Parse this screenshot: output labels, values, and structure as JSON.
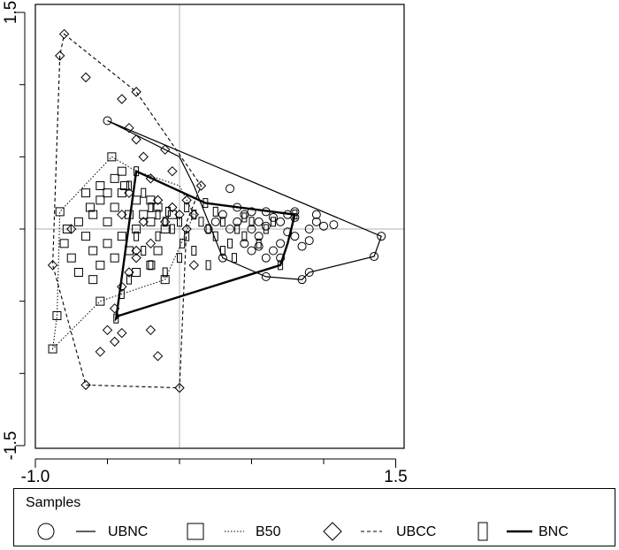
{
  "chart_data": {
    "type": "scatter",
    "title": "",
    "xlabel": "",
    "ylabel": "",
    "xlim": [
      -1.0,
      1.5
    ],
    "ylim": [
      -1.5,
      1.5
    ],
    "grid": false,
    "reference_lines": {
      "x": 0.0,
      "y": 0.0
    },
    "x_tick_labels": [
      "-1.0",
      "1.5"
    ],
    "y_tick_labels": [
      "1.5",
      "-1.5"
    ],
    "legend": {
      "title": "Samples",
      "placement": "bottom"
    },
    "series": [
      {
        "name": "UBNC",
        "marker": "circle",
        "line": "solid",
        "hull": [
          [
            -0.5,
            0.75
          ],
          [
            1.4,
            -0.05
          ],
          [
            1.35,
            -0.19
          ],
          [
            0.9,
            -0.3
          ],
          [
            0.85,
            -0.35
          ],
          [
            0.6,
            -0.33
          ],
          [
            0.3,
            -0.2
          ],
          [
            0.1,
            0.3
          ],
          [
            0.0,
            0.5
          ]
        ],
        "points": [
          [
            -0.5,
            0.75
          ],
          [
            1.4,
            -0.05
          ],
          [
            1.35,
            -0.19
          ],
          [
            0.9,
            -0.3
          ],
          [
            0.85,
            -0.35
          ],
          [
            0.6,
            -0.33
          ],
          [
            0.3,
            -0.2
          ],
          [
            0.35,
            0.28
          ],
          [
            1.07,
            0.03
          ],
          [
            0.75,
            0.1
          ],
          [
            0.6,
            0.12
          ],
          [
            0.55,
            0.05
          ],
          [
            0.5,
            0.0
          ],
          [
            0.7,
            -0.1
          ],
          [
            0.8,
            -0.05
          ],
          [
            0.9,
            0.0
          ],
          [
            0.65,
            -0.15
          ],
          [
            0.4,
            0.05
          ],
          [
            0.45,
            0.1
          ],
          [
            0.55,
            -0.05
          ],
          [
            0.6,
            0.02
          ],
          [
            0.7,
            0.05
          ],
          [
            0.5,
            0.12
          ],
          [
            0.8,
            0.08
          ],
          [
            0.95,
            0.05
          ],
          [
            1.0,
            0.02
          ],
          [
            0.85,
            -0.12
          ],
          [
            0.6,
            -0.2
          ],
          [
            0.45,
            -0.1
          ],
          [
            0.35,
            0.0
          ],
          [
            0.3,
            0.1
          ],
          [
            0.25,
            0.05
          ],
          [
            0.2,
            0.0
          ],
          [
            0.75,
            -0.02
          ],
          [
            0.65,
            0.08
          ],
          [
            0.55,
            -0.12
          ],
          [
            0.9,
            -0.08
          ],
          [
            0.4,
            0.15
          ],
          [
            0.7,
            -0.2
          ],
          [
            0.5,
            -0.15
          ],
          [
            0.8,
            0.12
          ],
          [
            0.95,
            0.1
          ]
        ]
      },
      {
        "name": "B50",
        "marker": "square",
        "line": "dotted",
        "hull": [
          [
            -0.47,
            0.5
          ],
          [
            -0.3,
            0.4
          ],
          [
            0.0,
            0.3
          ],
          [
            0.1,
            0.1
          ],
          [
            -0.1,
            -0.35
          ],
          [
            -0.55,
            -0.5
          ],
          [
            -0.88,
            -0.83
          ],
          [
            -0.85,
            -0.6
          ],
          [
            -0.83,
            0.12
          ]
        ],
        "points": [
          [
            -0.47,
            0.5
          ],
          [
            -0.83,
            0.12
          ],
          [
            -0.85,
            -0.6
          ],
          [
            -0.88,
            -0.83
          ],
          [
            -0.55,
            -0.5
          ],
          [
            -0.1,
            -0.35
          ],
          [
            -0.6,
            0.1
          ],
          [
            -0.55,
            0.2
          ],
          [
            -0.5,
            0.05
          ],
          [
            -0.45,
            0.15
          ],
          [
            -0.4,
            0.25
          ],
          [
            -0.35,
            0.1
          ],
          [
            -0.3,
            0.2
          ],
          [
            -0.25,
            0.1
          ],
          [
            -0.2,
            0.05
          ],
          [
            -0.15,
            0.15
          ],
          [
            -0.1,
            0.0
          ],
          [
            -0.05,
            0.1
          ],
          [
            -0.65,
            -0.05
          ],
          [
            -0.6,
            -0.15
          ],
          [
            -0.55,
            -0.25
          ],
          [
            -0.5,
            -0.1
          ],
          [
            -0.45,
            -0.2
          ],
          [
            -0.4,
            -0.05
          ],
          [
            -0.35,
            -0.15
          ],
          [
            -0.7,
            0.05
          ],
          [
            -0.75,
            -0.2
          ],
          [
            -0.65,
            0.25
          ],
          [
            -0.55,
            0.3
          ],
          [
            -0.45,
            0.35
          ],
          [
            -0.38,
            0.3
          ],
          [
            -0.3,
            -0.3
          ],
          [
            -0.2,
            -0.25
          ],
          [
            -0.6,
            -0.35
          ],
          [
            -0.7,
            -0.3
          ],
          [
            -0.78,
            0.0
          ],
          [
            -0.5,
            0.25
          ],
          [
            -0.4,
            0.4
          ],
          [
            -0.3,
            0.0
          ],
          [
            -0.2,
            0.2
          ],
          [
            -0.15,
            -0.15
          ],
          [
            -0.8,
            -0.1
          ],
          [
            -0.62,
            0.15
          ]
        ]
      },
      {
        "name": "UBCC",
        "marker": "diamond",
        "line": "dashed",
        "hull": [
          [
            -0.8,
            1.35
          ],
          [
            -0.3,
            0.95
          ],
          [
            0.15,
            0.3
          ],
          [
            0.05,
            0.05
          ],
          [
            0.0,
            -1.1
          ],
          [
            -0.65,
            -1.08
          ],
          [
            -0.88,
            -0.25
          ],
          [
            -0.83,
            1.2
          ]
        ],
        "points": [
          [
            -0.8,
            1.35
          ],
          [
            -0.83,
            1.2
          ],
          [
            -0.3,
            0.95
          ],
          [
            0.15,
            0.3
          ],
          [
            0.0,
            -1.1
          ],
          [
            -0.65,
            -1.08
          ],
          [
            -0.88,
            -0.25
          ],
          [
            -0.65,
            1.05
          ],
          [
            -0.4,
            0.9
          ],
          [
            -0.35,
            0.7
          ],
          [
            -0.3,
            0.62
          ],
          [
            -0.1,
            0.55
          ],
          [
            -0.05,
            0.4
          ],
          [
            -0.25,
            0.5
          ],
          [
            -0.2,
            0.35
          ],
          [
            -0.15,
            0.2
          ],
          [
            -0.05,
            0.15
          ],
          [
            0.0,
            0.1
          ],
          [
            0.05,
            0.2
          ],
          [
            0.1,
            0.1
          ],
          [
            -0.25,
            0.05
          ],
          [
            -0.2,
            -0.1
          ],
          [
            -0.3,
            -0.2
          ],
          [
            -0.35,
            -0.3
          ],
          [
            -0.4,
            -0.4
          ],
          [
            -0.45,
            -0.55
          ],
          [
            -0.5,
            -0.7
          ],
          [
            -0.55,
            -0.85
          ],
          [
            -0.45,
            -0.78
          ],
          [
            -0.4,
            -0.72
          ],
          [
            -0.2,
            -0.7
          ],
          [
            -0.15,
            -0.88
          ],
          [
            -0.75,
            0.0
          ],
          [
            -0.4,
            0.1
          ],
          [
            -0.35,
            0.25
          ],
          [
            0.1,
            -0.25
          ],
          [
            -0.3,
            -0.15
          ],
          [
            -0.1,
            0.05
          ],
          [
            0.05,
            0.0
          ]
        ]
      },
      {
        "name": "BNC",
        "marker": "narrow-rectangle",
        "line": "thick",
        "hull": [
          [
            -0.3,
            0.4
          ],
          [
            0.18,
            0.18
          ],
          [
            0.8,
            0.1
          ],
          [
            0.75,
            -0.1
          ],
          [
            0.7,
            -0.25
          ],
          [
            -0.42,
            -0.6
          ],
          [
            -0.44,
            -0.62
          ]
        ],
        "points": [
          [
            -0.3,
            0.4
          ],
          [
            0.18,
            0.18
          ],
          [
            0.8,
            0.1
          ],
          [
            0.7,
            -0.25
          ],
          [
            -0.44,
            -0.62
          ],
          [
            -0.35,
            0.3
          ],
          [
            -0.25,
            0.25
          ],
          [
            -0.2,
            0.15
          ],
          [
            -0.15,
            0.1
          ],
          [
            -0.1,
            0.05
          ],
          [
            -0.05,
            0.0
          ],
          [
            0.0,
            0.05
          ],
          [
            0.05,
            -0.05
          ],
          [
            0.1,
            0.1
          ],
          [
            0.15,
            0.05
          ],
          [
            0.2,
            0.0
          ],
          [
            0.25,
            -0.05
          ],
          [
            0.3,
            0.05
          ],
          [
            0.35,
            -0.1
          ],
          [
            0.4,
            0.0
          ],
          [
            0.45,
            -0.05
          ],
          [
            0.5,
            0.05
          ],
          [
            0.55,
            -0.1
          ],
          [
            0.6,
            0.0
          ],
          [
            -0.3,
            -0.05
          ],
          [
            -0.25,
            -0.15
          ],
          [
            -0.2,
            -0.25
          ],
          [
            -0.1,
            -0.3
          ],
          [
            0.0,
            -0.2
          ],
          [
            0.1,
            -0.15
          ],
          [
            0.2,
            -0.25
          ],
          [
            0.3,
            -0.15
          ],
          [
            -0.35,
            -0.35
          ],
          [
            -0.4,
            -0.45
          ],
          [
            -0.15,
            -0.05
          ],
          [
            0.05,
            0.15
          ],
          [
            0.25,
            0.12
          ],
          [
            0.45,
            0.08
          ],
          [
            0.65,
            0.05
          ],
          [
            0.38,
            -0.2
          ],
          [
            0.02,
            -0.1
          ],
          [
            -0.08,
            0.12
          ]
        ]
      }
    ]
  }
}
